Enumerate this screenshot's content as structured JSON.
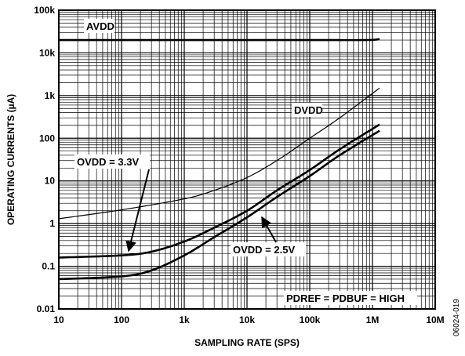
{
  "chart_data": {
    "type": "line",
    "x_scale": "log",
    "y_scale": "log",
    "xlim": [
      10,
      10000000
    ],
    "ylim": [
      0.01,
      100000
    ],
    "grid": true,
    "xlabel": "SAMPLING RATE (SPS)",
    "ylabel": "OPERATING CURRENTS (µA)",
    "x_ticks": [
      10,
      100,
      1000,
      10000,
      100000,
      1000000,
      10000000
    ],
    "x_tick_labels": [
      "10",
      "100",
      "1k",
      "10k",
      "100k",
      "1M",
      "10M"
    ],
    "y_ticks": [
      0.01,
      0.1,
      1,
      10,
      100,
      1000,
      10000,
      100000
    ],
    "y_tick_labels": [
      "0.01",
      "0.1",
      "1",
      "10",
      "100",
      "1k",
      "10k",
      "100k"
    ],
    "series": [
      {
        "name": "AVDD",
        "color": "#000000",
        "points": [
          [
            10,
            20000
          ],
          [
            100,
            20000
          ],
          [
            1000,
            20000
          ],
          [
            10000,
            20000
          ],
          [
            100000,
            20000
          ],
          [
            800000,
            20000
          ],
          [
            1300000,
            21000
          ]
        ]
      },
      {
        "name": "DVDD",
        "color": "#000000",
        "points": [
          [
            10,
            1.3
          ],
          [
            100,
            2.1
          ],
          [
            1000,
            3.8
          ],
          [
            3000,
            6
          ],
          [
            10000,
            12
          ],
          [
            30000,
            30
          ],
          [
            100000,
            100
          ],
          [
            300000,
            300
          ],
          [
            1300000,
            1500
          ]
        ]
      },
      {
        "name": "OVDD = 3.3V",
        "color": "#000000",
        "points": [
          [
            10,
            0.16
          ],
          [
            100,
            0.18
          ],
          [
            300,
            0.22
          ],
          [
            1000,
            0.38
          ],
          [
            3000,
            0.8
          ],
          [
            10000,
            2.0
          ],
          [
            30000,
            6
          ],
          [
            100000,
            18
          ],
          [
            300000,
            55
          ],
          [
            1300000,
            210
          ]
        ]
      },
      {
        "name": "OVDD = 2.5V",
        "color": "#000000",
        "points": [
          [
            10,
            0.05
          ],
          [
            100,
            0.058
          ],
          [
            300,
            0.08
          ],
          [
            1000,
            0.18
          ],
          [
            3000,
            0.48
          ],
          [
            10000,
            1.4
          ],
          [
            30000,
            4.2
          ],
          [
            100000,
            13
          ],
          [
            300000,
            40
          ],
          [
            1300000,
            150
          ]
        ]
      }
    ],
    "annotations": [
      {
        "text": "AVDD"
      },
      {
        "text": "DVDD"
      },
      {
        "text": "OVDD = 3.3V"
      },
      {
        "text": "OVDD = 2.5V"
      },
      {
        "text": "PDREF = PDBUF = HIGH"
      }
    ],
    "figure_id": "06024-019"
  }
}
